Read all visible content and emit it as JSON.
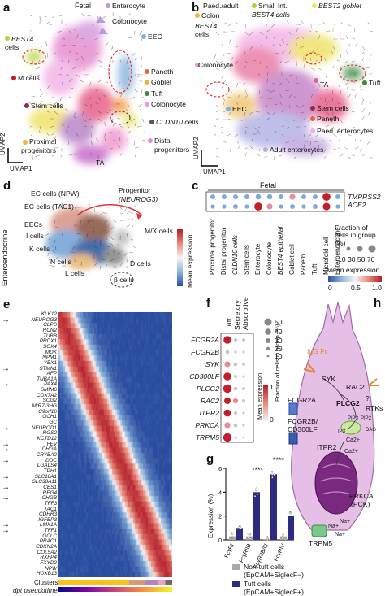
{
  "panel_labels": {
    "a": "a",
    "b": "b",
    "c": "c",
    "d": "d",
    "e": "e",
    "f": "f",
    "g": "g",
    "h": "h"
  },
  "panel_a": {
    "title": "Fetal",
    "labels": [
      "Enterocyte",
      "Colonocyte",
      "EEC",
      "BEST4",
      "cells",
      "M cells",
      "Paneth",
      "Goblet",
      "Tuft",
      "Colonocyte",
      "CLDN10 cells",
      "Distal",
      "progenitors",
      "Stem cells",
      "Proximal",
      "progenitors",
      "TA"
    ],
    "axis_y": "UMAP2",
    "axis_x": "UMAP1"
  },
  "panel_b": {
    "labels": [
      "Paed./adult",
      "Colon",
      "Small Int.",
      "BEST4 cells",
      "BEST2 goblet",
      "BEST4",
      "cells",
      "Colonocyte",
      "TA",
      "Tuft",
      "Stem cells",
      "Paneth",
      "Paed. enterocytes",
      "Adult enterocytes",
      "EEC"
    ],
    "axis_y": "UMAP2",
    "axis_x": "UMAP1"
  },
  "panel_c": {
    "title": "Fetal",
    "genes": [
      "TMPRSS2",
      "ACE2"
    ],
    "columns": [
      "Proximal progenitor",
      "Distal progenitor",
      "CLDN10 cells",
      "Stem cells",
      "Enterocyte",
      "Colonocyte",
      "BEST4 epithelial",
      "Goblet cell",
      "Paneth",
      "Tuft",
      "Microfold cell",
      "Enteroendocrine"
    ],
    "fraction_title": "Fraction of cells in group (%)",
    "fraction_values": "10 30 50 70",
    "mean_title": "Mean expression",
    "mean_ticks": [
      "0",
      "0.5",
      "1.0"
    ]
  },
  "panel_d": {
    "side_label": "Enteroendocrine",
    "labels": [
      "EC cells (NPW)",
      "EC cells (TAC1)",
      "EECs",
      "I cells",
      "K cells",
      "N cells",
      "L cells",
      "D cells",
      "β cells",
      "M/X cells",
      "Progenitor",
      "(NEUROG3)"
    ]
  },
  "panel_e": {
    "genes": [
      "KLK12",
      "NEUROG3",
      "CLPS",
      "RCN2",
      "TUBB",
      "PRDX1",
      "SOX4",
      "MDK",
      "NPM1",
      "YBX1",
      "STMN1",
      "AFP",
      "TUBA1A",
      "PAX4",
      "SMIM6",
      "COX7A2",
      "SCG2",
      "MIR7-3HG",
      "C9orf16",
      "GCH1",
      "GC",
      "NEUROD1",
      "RGS2",
      "KCTD12",
      "FEV",
      "CHGA",
      "CRYBA2",
      "DDC",
      "LGALS4",
      "TPH1",
      "SLC18A1",
      "SLC38A11",
      "CES1",
      "REG4",
      "CHGB",
      "TFF3",
      "TAC1",
      "CDHR3",
      "IGFBP3",
      "LMX1A",
      "TFF1",
      "GCLC",
      "PRAC1",
      "CDKN2A",
      "COL5A2",
      "RXFP4",
      "FXYD2",
      "NPW",
      "HOXB13"
    ],
    "arrowed": [
      "NEUROG3",
      "STMN1",
      "PAX4",
      "NEUROD1",
      "FEV",
      "CHGA",
      "DDC",
      "SLC18A1",
      "CES1",
      "CHGB",
      "LMX1A",
      "TFF1"
    ],
    "colorbar_title": "Mean expression",
    "footer_clusters": "Clusters",
    "footer_pseudotime": "dpt pseudotime"
  },
  "panel_f": {
    "columns": [
      "Tuft",
      "Secretory",
      "Absorptive"
    ],
    "genes": [
      "FCGR2A",
      "FCGR2B",
      "SYK",
      "CD300LF",
      "PLCG2",
      "RAC2",
      "ITPR2",
      "PRKCA",
      "TRPM5"
    ],
    "fraction_title": "Fraction of cells in group (%)",
    "fraction_values": [
      "50",
      "40",
      "30",
      "20",
      "10"
    ],
    "mean_title": "Mean expression",
    "mean_ticks": [
      "0",
      "1"
    ]
  },
  "panel_g": {
    "ylabel": "Expression (%)",
    "yticks": [
      "0",
      "2",
      "4",
      "6"
    ],
    "significance": [
      "****",
      "****"
    ],
    "legend": [
      "Non-tuft cells",
      "(EpCAM+SiglecF−)",
      "Tuft cells",
      "(EpCAM+SiglecF+)"
    ],
    "colors": {
      "nontuft": "#a9a9a9",
      "tuft": "#2b2b7f"
    }
  },
  "panel_h": {
    "labels": [
      "IgG Fc",
      "SYK",
      "RAC2",
      "?",
      "RTKs",
      "FCGR2A",
      "PLCG2",
      "FCGR2B/",
      "CD300LF",
      "PIP2",
      "PIP3",
      "IP3",
      "DAG",
      "ITPR2",
      "Ca2+",
      "Ca2+",
      "PRKCA",
      "(PCK)",
      "Na+",
      "Na+",
      "Na+",
      "TRPM5"
    ]
  },
  "chart_data": {
    "type": "bar",
    "categories": [
      "FcγRI",
      "FcγRIIB",
      "FcγRIIB/III",
      "FcγRIV"
    ],
    "series": [
      {
        "name": "Non-tuft cells (EpCAM+SiglecF−)",
        "values": [
          0.3,
          0.3,
          0.05,
          0.3
        ]
      },
      {
        "name": "Tuft cells (EpCAM+SiglecF+)",
        "values": [
          1.0,
          4.0,
          5.5,
          2.0
        ]
      }
    ],
    "xlabel": "",
    "ylabel": "Expression (%)",
    "ylim": [
      0,
      6
    ]
  }
}
